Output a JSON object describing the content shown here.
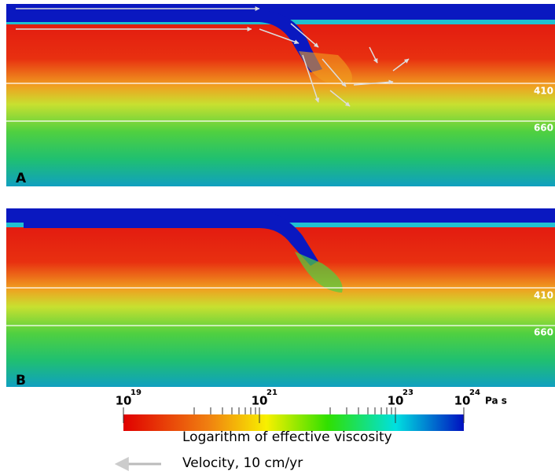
{
  "panels": [
    {
      "label": "A",
      "depth_labels": [
        "410",
        "660"
      ]
    },
    {
      "label": "B",
      "depth_labels": [
        "410",
        "660"
      ]
    }
  ],
  "colorbar": {
    "title": "Logarithm of effective viscosity",
    "unit": "Pa s",
    "ticks": [
      {
        "base": "10",
        "exponent": "19"
      },
      {
        "base": "10",
        "exponent": "21"
      },
      {
        "base": "10",
        "exponent": "23"
      },
      {
        "base": "10",
        "exponent": "24"
      }
    ]
  },
  "legend": {
    "velocity": "Velocity, 10 cm/yr"
  }
}
